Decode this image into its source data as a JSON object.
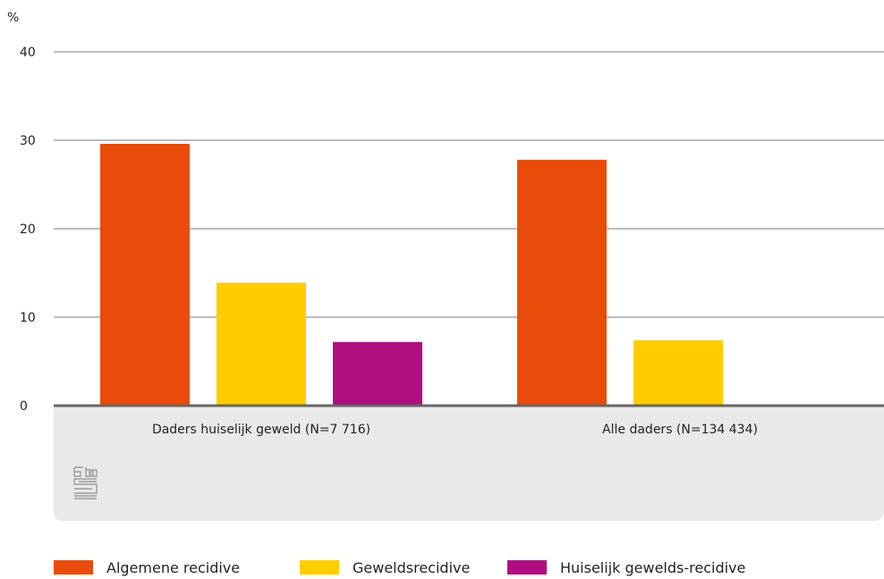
{
  "chart_data": {
    "type": "bar",
    "ylabel": "%",
    "ylim": [
      0,
      40
    ],
    "yticks": [
      0,
      10,
      20,
      30,
      40
    ],
    "grid": true,
    "categories": [
      "Daders huiselijk geweld (N=7 716)",
      "Alle daders (N=134 434)"
    ],
    "series": [
      {
        "name": "Algemene recidive",
        "color": "#e94c0a",
        "values": [
          29.6,
          27.8
        ]
      },
      {
        "name": "Geweldsrecidive",
        "color": "#ffcc00",
        "values": [
          13.9,
          7.4
        ]
      },
      {
        "name": "Huiselijk gewelds-recidive",
        "color": "#af0e80",
        "values": [
          7.2,
          null
        ]
      }
    ],
    "legend_position": "bottom-left"
  },
  "logo": {
    "name": "cbs-logo-icon",
    "text": "cbs"
  }
}
